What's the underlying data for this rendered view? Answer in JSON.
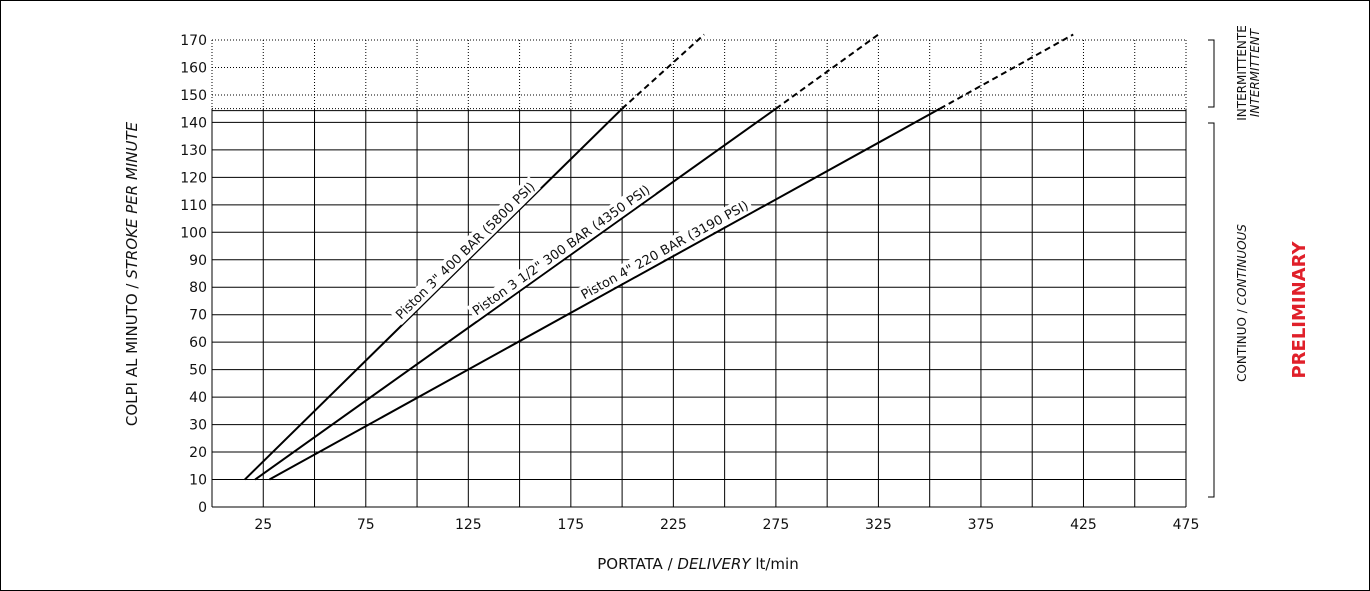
{
  "colors": {
    "preliminary": "#e0202a",
    "line": "#000000",
    "grid": "#000000"
  },
  "chart_data": {
    "type": "line",
    "title": "",
    "xlabel_plain": "PORTATA / ",
    "xlabel_italic": "DELIVERY",
    "xlabel_unit": " lt/min",
    "ylabel_plain": "COLPI AL MINUTO / ",
    "ylabel_italic": "STROKE PER MINUTE",
    "xlim": [
      0,
      475
    ],
    "ylim": [
      0,
      170
    ],
    "x_ticks": [
      25,
      75,
      125,
      175,
      225,
      275,
      325,
      375,
      425,
      475
    ],
    "y_ticks": [
      0,
      10,
      20,
      30,
      40,
      50,
      60,
      70,
      80,
      90,
      100,
      110,
      120,
      130,
      140,
      150,
      160,
      170
    ],
    "continuous_limit": 145,
    "series": [
      {
        "name": "Piston 3\" 400 BAR (5800 PSI)",
        "x": [
          16,
          200
        ],
        "y": [
          10,
          145
        ],
        "dashed_to": [
          240,
          172
        ]
      },
      {
        "name": "Piston 3 1/2\" 300 BAR (4350 PSI)",
        "x": [
          21,
          275
        ],
        "y": [
          10,
          145
        ],
        "dashed_to": [
          325,
          172
        ]
      },
      {
        "name": "Piston 4\" 220 BAR (3190 PSI)",
        "x": [
          28,
          355
        ],
        "y": [
          10,
          145
        ],
        "dashed_to": [
          420,
          172
        ]
      }
    ],
    "side_labels": {
      "intermittent_it": "INTERMITTENTE",
      "intermittent_en": "INTERMITTENT",
      "continuous_it": "CONTINUO / ",
      "continuous_en": "CONTINUOUS"
    },
    "watermark": "PRELIMINARY"
  }
}
